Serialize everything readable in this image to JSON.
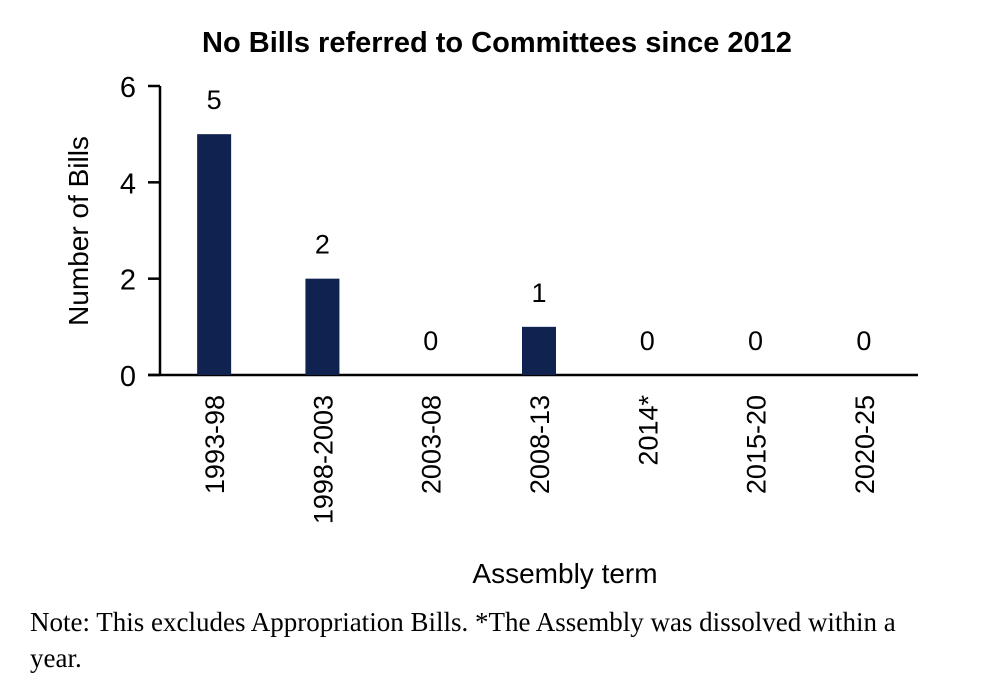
{
  "chart_data": {
    "type": "bar",
    "title": "No Bills referred to Committees since 2012",
    "xlabel": "Assembly term",
    "ylabel": "Number of Bills",
    "categories": [
      "1993-98",
      "1998-2003",
      "2003-08",
      "2008-13",
      "2014*",
      "2015-20",
      "2020-25"
    ],
    "values": [
      5,
      2,
      0,
      1,
      0,
      0,
      0
    ],
    "ylim": [
      0,
      6
    ],
    "yticks": [
      0,
      2,
      4,
      6
    ],
    "grid": false,
    "bar_color": "#10224f"
  },
  "note": "Note: This excludes Appropriation Bills.  *The Assembly was dissolved within a year."
}
